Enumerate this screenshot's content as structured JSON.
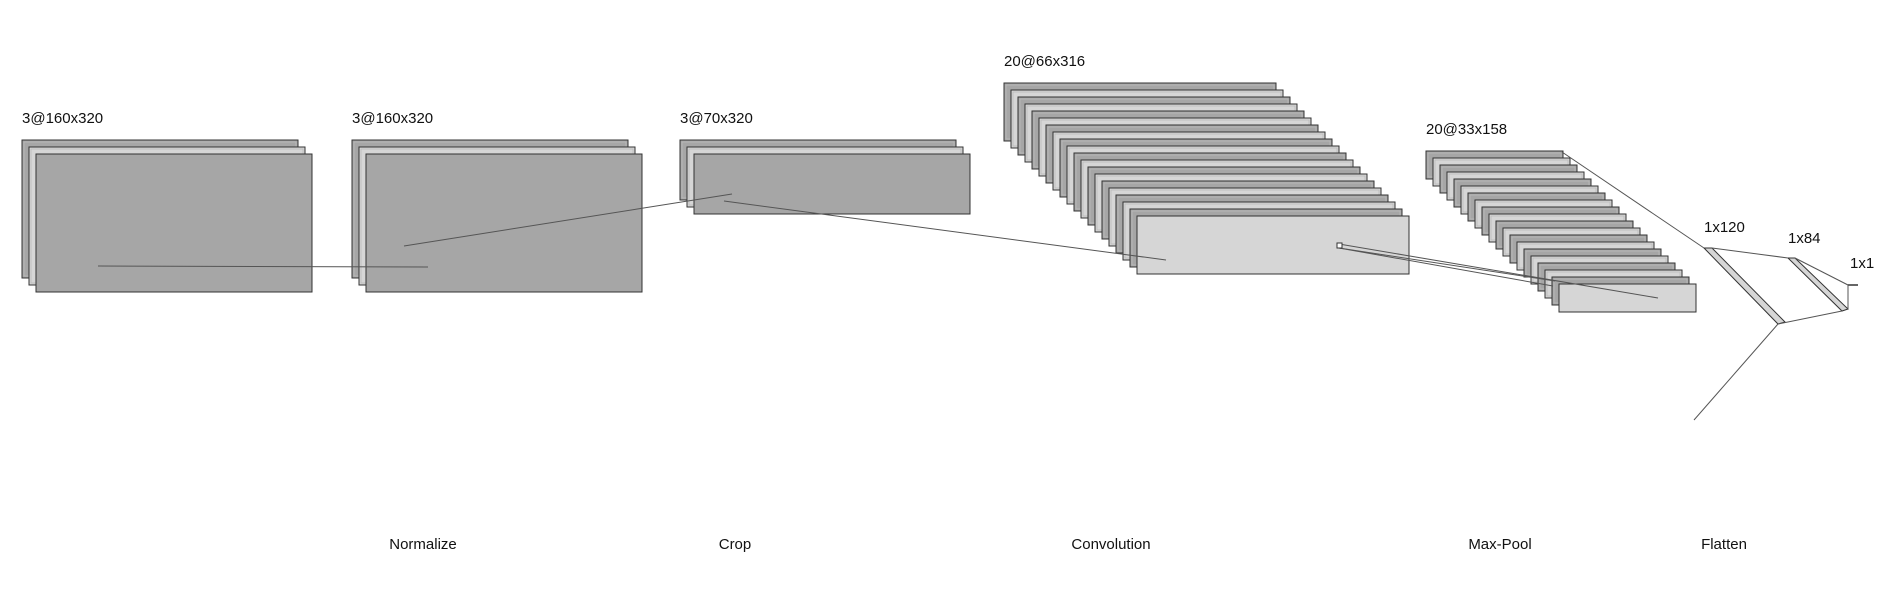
{
  "layers": [
    {
      "id": "input",
      "label": "3@160x320",
      "maps": 3
    },
    {
      "id": "normalize",
      "label": "3@160x320",
      "maps": 3
    },
    {
      "id": "crop",
      "label": "3@70x320",
      "maps": 3
    },
    {
      "id": "conv",
      "label": "20@66x316",
      "maps": 20
    },
    {
      "id": "pool",
      "label": "20@33x158",
      "maps": 20
    },
    {
      "id": "fc1",
      "label": "1x120"
    },
    {
      "id": "fc2",
      "label": "1x84"
    },
    {
      "id": "out",
      "label": "1x1"
    }
  ],
  "operations": [
    "Normalize",
    "Crop",
    "Convolution",
    "Max-Pool",
    "Flatten"
  ],
  "colors": {
    "map_dark": "#a6a6a6",
    "map_light": "#d6d6d6",
    "stroke": "#333333",
    "line": "#555555"
  }
}
